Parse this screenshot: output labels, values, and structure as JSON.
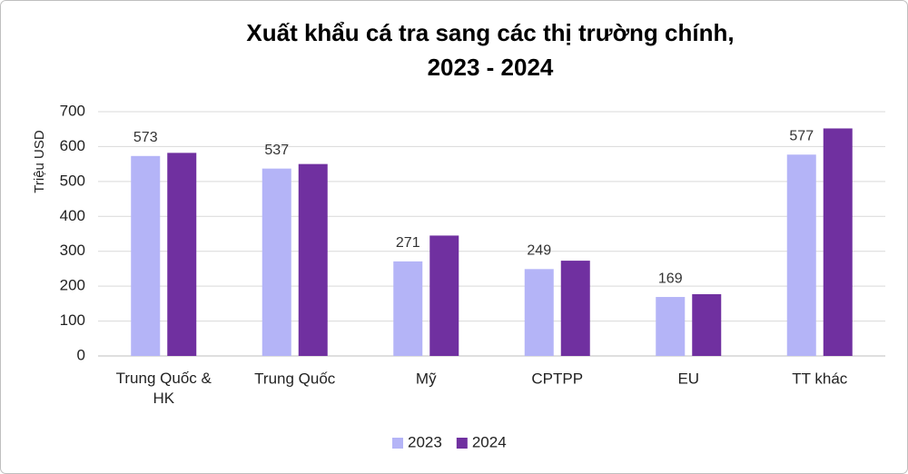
{
  "chart_data": {
    "type": "bar",
    "title": [
      "Xuất khẩu cá tra sang các thị trường chính,",
      "2023 - 2024"
    ],
    "y_label": "Triệu USD",
    "categories": [
      "Trung Quốc & HK",
      "Trung Quốc",
      "Mỹ",
      "CPTPP",
      "EU",
      "TT khác"
    ],
    "series": [
      {
        "name": "2023",
        "color": "#b4b4f7",
        "values": [
          573,
          537,
          271,
          249,
          169,
          577
        ],
        "show_labels": true
      },
      {
        "name": "2024",
        "color": "#7030a0",
        "values": [
          582,
          550,
          345,
          273,
          177,
          652
        ],
        "show_labels": false
      }
    ],
    "ylim": [
      0,
      700
    ],
    "yticks": [
      0,
      100,
      200,
      300,
      400,
      500,
      600,
      700
    ],
    "grid": true,
    "legend": "bottom"
  }
}
